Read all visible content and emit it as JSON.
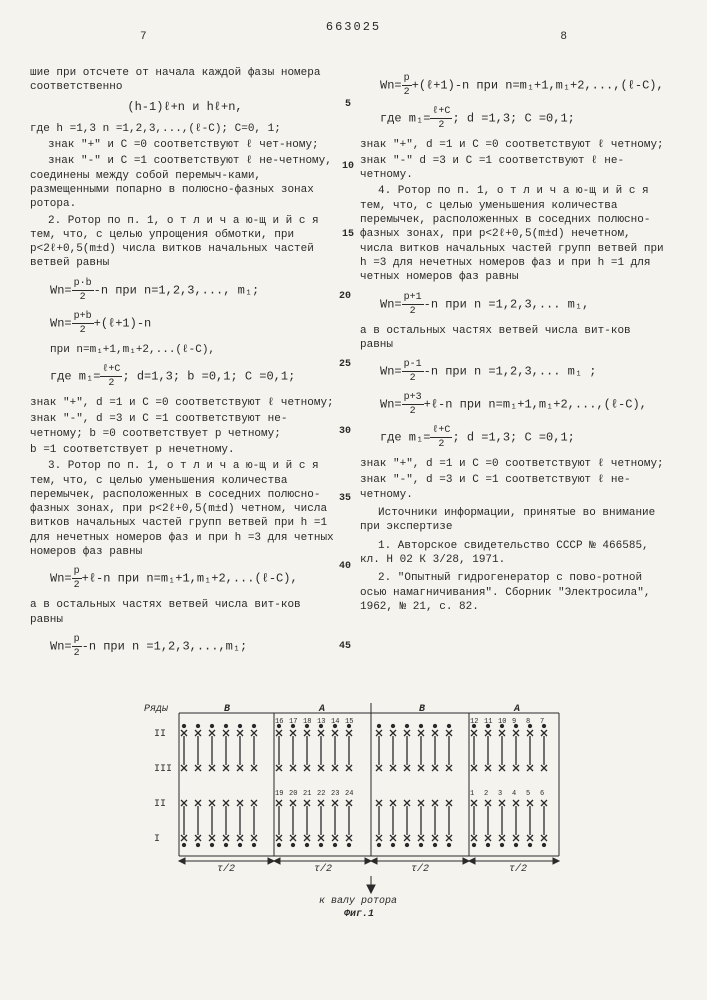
{
  "page_left": "7",
  "page_right": "8",
  "patent_number": "663025",
  "col1": {
    "p1": "шие при отсчете от начала каждой фазы номера соответственно",
    "f1": "(h-1)ℓ+n и hℓ+n,",
    "p2": "где h =1,3  n =1,2,3,...,(ℓ-C); C=0, 1;",
    "p3": "знак \"+\" и C =0 соответствуют ℓ чет-ному;",
    "p4": "знак \"-\" и C =1 соответствуют ℓ не-четному, соединены между собой перемыч-ками, размещенными попарно в полюсно-фазных зонах ротора.",
    "claim2_head": "2. Ротор по п. 1, ",
    "claim2_spaced": "о т л и ч а ю-щ и й с я",
    "claim2_body": " тем, что, с целью упрощения обмотки, при p<2ℓ+0,5(m±d) числа витков начальных частей ветвей равны",
    "f2_pre": "Wn=",
    "f2_num": "p·b",
    "f2_den": "2",
    "f2_post": "-n  при n=1,2,3,..., m₁;",
    "f3_pre": "Wn=",
    "f3_num": "p+b",
    "f3_den": "2",
    "f3_post": "+(ℓ+1)-n",
    "f3_line2": "при n=m₁+1,m₁+2,...(ℓ-C),",
    "f4_pre": "где  m₁=",
    "f4_num": "ℓ+C",
    "f4_den": "2",
    "f4_post": "; d=1,3; b =0,1; C =0,1;",
    "p5": "знак \"+\", d =1 и C =0 соответствуют ℓ четному;",
    "p6": "знак \"-\", d =3 и C =1 соответствуют не-четному; b =0 соответствует p четному;",
    "p7": "b =1 соответствует p нечетному.",
    "claim3_head": "3. Ротор по п. 1, ",
    "claim3_spaced": "о т л и ч а ю-щ и й с я",
    "claim3_body": " тем, что, с целью уменьшения количества перемычек, расположенных в соседних полюсно-фазных зонах, при p<2ℓ+0,5(m±d) четном, числа витков начальных частей групп ветвей при h =1 для нечетных номеров фаз и при h =3 для четных номеров фаз равны",
    "f5_pre": "Wn=",
    "f5_num": "p",
    "f5_den": "2",
    "f5_post": "+ℓ-n при n=m₁+1,m₁+2,...(ℓ-C),",
    "p8": "а в остальных частях ветвей числа вит-ков равны",
    "f6_pre": "Wn=",
    "f6_num": "p",
    "f6_den": "2",
    "f6_post": "-n   при n =1,2,3,...,m₁;"
  },
  "col2": {
    "f1_pre": "Wn=",
    "f1_num": "p",
    "f1_den": "2",
    "f1_post": "+(ℓ+1)-n при n=m₁+1,m₁+2,...,(ℓ-C),",
    "f2_pre": "где   m₁=",
    "f2_num": "ℓ+C",
    "f2_den": "2",
    "f2_post": ";   d =1,3;  C  =0,1;",
    "p1": "знак \"+\", d =1  и C =0 соответствуют ℓ четному;",
    "p2": "знак \"-\" d =3 и C =1 соответствуют ℓ не-четному.",
    "claim4_head": "4. Ротор по п. 1, ",
    "claim4_spaced": "о т л и ч а ю-щ и й с я",
    "claim4_body": " тем, что, с целью уменьшения количества перемычек, расположенных в соседних полюсно-фазных зонах, при p<2ℓ+0,5(m±d) нечетном, числа витков начальных частей групп ветвей при h =3 для нечетных номеров фаз и при h =1 для четных номеров фаз равны",
    "f3_pre": "Wn=",
    "f3_num": "p+1",
    "f3_den": "2",
    "f3_post": "-n   при n =1,2,3,... m₁,",
    "p3": "а в остальных частях ветвей числа вит-ков равны",
    "f4_pre": "Wn=",
    "f4_num": "p-1",
    "f4_den": "2",
    "f4_post": "-n  при n =1,2,3,... m₁ ;",
    "f5_pre": "Wn=",
    "f5_num": "p+3",
    "f5_den": "2",
    "f5_post": "+ℓ-n при n=m₁+1,m₁+2,...,(ℓ-C),",
    "f6_pre": "где  m₁=",
    "f6_num": "ℓ+C",
    "f6_den": "2",
    "f6_post": ";  d =1,3; C =0,1;",
    "p4": "знак \"+\", d =1  и C =0 соответствуют ℓ четному;",
    "p5": "знак \"-\", d =3 и C =1 соответствуют ℓ не-четному.",
    "refs_head": "Источники информации, принятые во внимание при экспертизе",
    "ref1": "1. Авторское свидетельство СССР № 466585, кл. Н 02 К 3/28, 1971.",
    "ref2": "2. \"Опытный гидрогенератор с пово-ротной осью намагничивания\". Сборник \"Электросила\", 1962, № 21, с.  82."
  },
  "diagram": {
    "rows_label": "Ряды",
    "row_labels": [
      "II",
      "III",
      "II",
      "I"
    ],
    "top_labels": [
      "B",
      "A",
      "B",
      "A"
    ],
    "tau_labels": [
      "τ/2",
      "τ/2",
      "τ/2",
      "τ/2"
    ],
    "numbers_top": [
      "16",
      "17",
      "18",
      "13",
      "14",
      "15",
      "12",
      "11",
      "10",
      "9",
      "8",
      "7"
    ],
    "numbers_mid": [
      "19",
      "20",
      "21",
      "22",
      "23",
      "24",
      "1",
      "2",
      "3",
      "4",
      "5",
      "6"
    ],
    "arrow_label": "к валу ротора",
    "fig_label": "Фиг.1"
  }
}
